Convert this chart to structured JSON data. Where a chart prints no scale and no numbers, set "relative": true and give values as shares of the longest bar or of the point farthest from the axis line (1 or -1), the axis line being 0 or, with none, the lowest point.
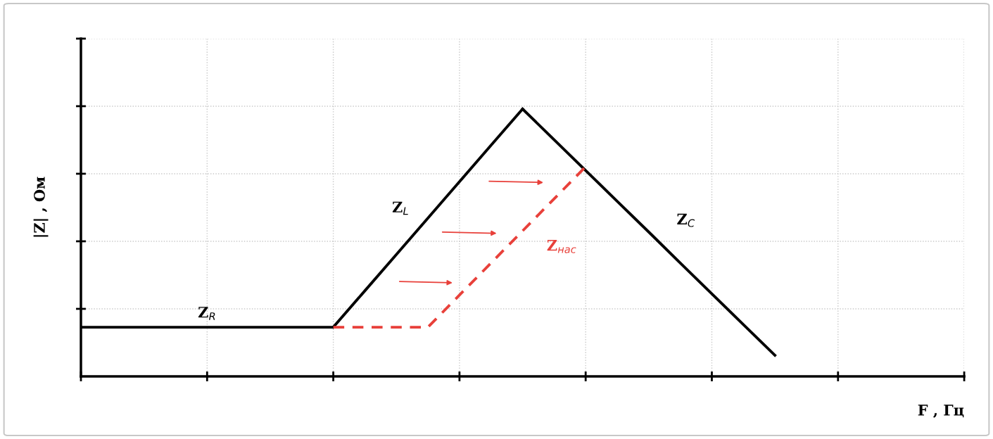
{
  "chart_data": {
    "type": "line",
    "relative": true,
    "xlabel": "F , Гц",
    "ylabel": "|Z| , Ом",
    "categories": [
      null,
      null,
      null,
      null,
      null,
      null,
      null,
      null,
      null,
      null,
      null,
      null,
      null,
      null,
      null,
      null,
      null,
      null,
      null,
      null,
      null,
      null,
      null,
      null,
      null,
      null,
      null,
      null,
      null
    ],
    "series": [
      {
        "name": "Z$_{R}$",
        "color": "#000000",
        "line_style": "solid",
        "values": [
          0.184,
          0.184,
          0.184,
          0.184,
          0.184,
          0.184,
          0.184,
          0.184,
          0.184,
          null,
          null,
          null,
          null,
          null,
          null,
          null,
          null,
          null,
          null,
          null,
          null,
          null,
          null,
          null,
          null,
          null,
          null,
          null,
          null
        ]
      },
      {
        "name": "Z$_{L}$",
        "color": "#000000",
        "line_style": "solid",
        "values": [
          null,
          null,
          null,
          null,
          null,
          null,
          null,
          null,
          0.184,
          0.32,
          0.456,
          0.592,
          0.728,
          0.864,
          1,
          null,
          null,
          null,
          null,
          null,
          null,
          null,
          null,
          null,
          null,
          null,
          null,
          null,
          null
        ]
      },
      {
        "name": "Z$_{C}$",
        "color": "#000000",
        "line_style": "solid",
        "values": [
          null,
          null,
          null,
          null,
          null,
          null,
          null,
          null,
          null,
          null,
          null,
          null,
          null,
          null,
          1,
          0.885,
          0.77,
          0.655,
          0.54,
          0.424,
          0.309,
          0.194,
          0.079,
          null,
          null,
          null,
          null,
          null,
          null
        ]
      },
      {
        "name": "Z$_{нас}$",
        "color": "#e8403a",
        "line_style": "dashed",
        "values": [
          null,
          null,
          null,
          null,
          null,
          null,
          null,
          null,
          0.184,
          0.184,
          0.184,
          0.184,
          0.304,
          0.424,
          0.544,
          0.664,
          0.784,
          null,
          null,
          null,
          null,
          null,
          null,
          null,
          null,
          null,
          null,
          null,
          null
        ]
      }
    ],
    "grid": true,
    "marker": "none",
    "legend": false
  }
}
